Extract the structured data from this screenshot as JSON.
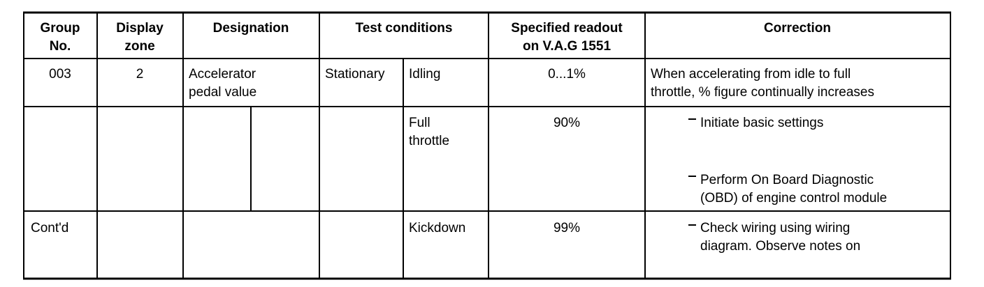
{
  "header": {
    "group_no": [
      "Group",
      "No."
    ],
    "display_zone": [
      "Display",
      "zone"
    ],
    "designation": "Designation",
    "test_conditions": "Test conditions",
    "specified_readout": [
      "Specified readout",
      "on V.A.G 1551"
    ],
    "correction": "Correction"
  },
  "rows": [
    {
      "group": "003",
      "zone": "2",
      "designation": [
        "Accelerator",
        "pedal value"
      ],
      "condition": "Stationary",
      "sub_condition": [
        "Idling"
      ],
      "readout": "0...1%",
      "correction": [
        "When accelerating from idle to full",
        "throttle, % figure continually increases"
      ]
    },
    {
      "sub_condition": [
        "Full",
        "throttle"
      ],
      "readout": "90%",
      "bullets": [
        [
          "Initiate basic settings"
        ],
        [
          "Perform On Board Diagnostic",
          "(OBD) of engine control module"
        ]
      ]
    },
    {
      "group": "Cont'd",
      "sub_condition": [
        "Kickdown"
      ],
      "readout": "99%",
      "bullets": [
        [
          "Check wiring using wiring",
          "diagram. Observe notes on"
        ]
      ]
    }
  ]
}
